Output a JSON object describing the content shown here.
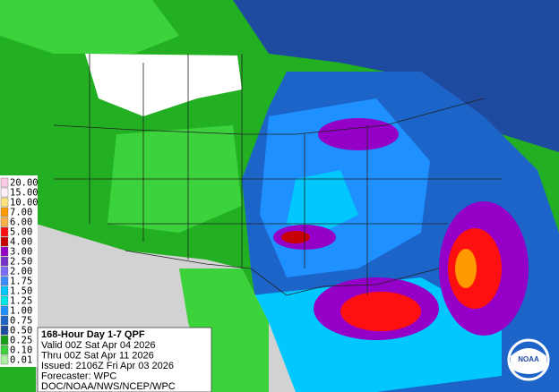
{
  "legend": [
    {
      "label": "20.00",
      "color": "#ffc8e6"
    },
    {
      "label": "15.00",
      "color": "#fff0f8"
    },
    {
      "label": "10.00",
      "color": "#ffe080"
    },
    {
      "label": "7.00",
      "color": "#ff9900"
    },
    {
      "label": "6.00",
      "color": "#ffb347"
    },
    {
      "label": "5.00",
      "color": "#ff1010"
    },
    {
      "label": "4.00",
      "color": "#c80000"
    },
    {
      "label": "3.00",
      "color": "#9400c8"
    },
    {
      "label": "2.50",
      "color": "#7a2ec8"
    },
    {
      "label": "2.00",
      "color": "#7a6cff"
    },
    {
      "label": "1.75",
      "color": "#3c8cff"
    },
    {
      "label": "1.50",
      "color": "#00c8ff"
    },
    {
      "label": "1.25",
      "color": "#00e6e6"
    },
    {
      "label": "1.00",
      "color": "#1e90ff"
    },
    {
      "label": "0.75",
      "color": "#1c64c8"
    },
    {
      "label": "0.50",
      "color": "#1e4aa0"
    },
    {
      "label": "0.25",
      "color": "#16a016"
    },
    {
      "label": "0.10",
      "color": "#3cd23c"
    },
    {
      "label": "0.01",
      "color": "#a8f0a0"
    }
  ],
  "info": {
    "title": "168-Hour Day 1-7 QPF",
    "lines": [
      "Valid 00Z Sat Apr 04 2026",
      "Thru 00Z Sat Apr 11 2026",
      "Issued: 2106Z Fri Apr 03 2026",
      "Forecaster: WPC",
      "DOC/NOAA/NWS/NCEP/WPC"
    ]
  },
  "logo": "NOAA"
}
